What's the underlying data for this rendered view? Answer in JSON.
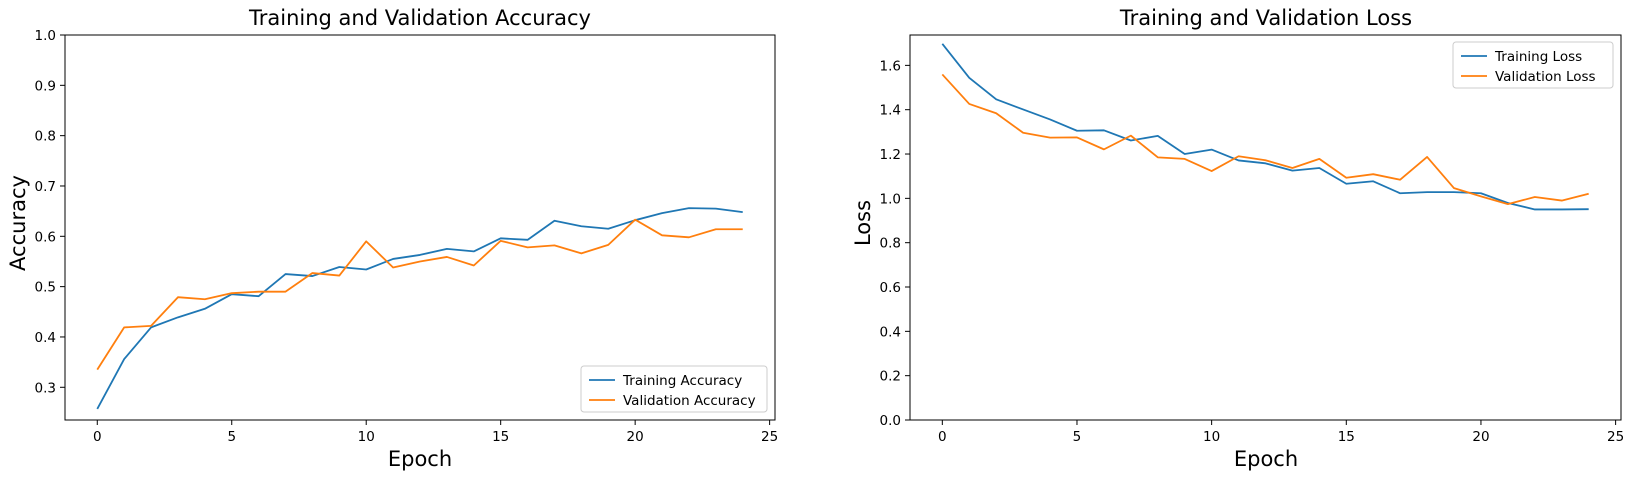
{
  "chart_data": [
    {
      "type": "line",
      "title": "Training and Validation Accuracy",
      "xlabel": "Epoch",
      "ylabel": "Accuracy",
      "xlim": [
        -1.2,
        25.2
      ],
      "ylim": [
        0.235,
        1.0
      ],
      "xticks": [
        0,
        5,
        10,
        15,
        20,
        25
      ],
      "yticks": [
        0.3,
        0.4,
        0.5,
        0.6,
        0.7,
        0.8,
        0.9,
        1.0
      ],
      "xtick_labels": [
        "0",
        "5",
        "10",
        "15",
        "20",
        "25"
      ],
      "ytick_labels": [
        "0.3",
        "0.4",
        "0.5",
        "0.6",
        "0.7",
        "0.8",
        "0.9",
        "1.0"
      ],
      "legend_position": "lower right",
      "grid": false,
      "x": [
        0,
        1,
        2,
        3,
        4,
        5,
        6,
        7,
        8,
        9,
        10,
        11,
        12,
        13,
        14,
        15,
        16,
        17,
        18,
        19,
        20,
        21,
        22,
        23,
        24
      ],
      "series": [
        {
          "name": "Training Accuracy",
          "color": "#1f77b4",
          "values": [
            0.257,
            0.356,
            0.419,
            0.439,
            0.456,
            0.485,
            0.481,
            0.525,
            0.521,
            0.539,
            0.534,
            0.555,
            0.563,
            0.575,
            0.57,
            0.596,
            0.593,
            0.631,
            0.62,
            0.615,
            0.632,
            0.646,
            0.656,
            0.655,
            0.648
          ]
        },
        {
          "name": "Validation Accuracy",
          "color": "#ff7f0e",
          "values": [
            0.335,
            0.419,
            0.422,
            0.479,
            0.475,
            0.487,
            0.49,
            0.49,
            0.527,
            0.522,
            0.59,
            0.538,
            0.55,
            0.559,
            0.542,
            0.591,
            0.578,
            0.582,
            0.566,
            0.583,
            0.633,
            0.602,
            0.598,
            0.614,
            0.614
          ]
        }
      ]
    },
    {
      "type": "line",
      "title": "Training and Validation Loss",
      "xlabel": "Epoch",
      "ylabel": "Loss",
      "xlim": [
        -1.2,
        25.2
      ],
      "ylim": [
        0.0,
        1.737
      ],
      "xticks": [
        0,
        5,
        10,
        15,
        20,
        25
      ],
      "yticks": [
        0.0,
        0.2,
        0.4,
        0.6,
        0.8,
        1.0,
        1.2,
        1.4,
        1.6
      ],
      "xtick_labels": [
        "0",
        "5",
        "10",
        "15",
        "20",
        "25"
      ],
      "ytick_labels": [
        "0.0",
        "0.2",
        "0.4",
        "0.6",
        "0.8",
        "1.0",
        "1.2",
        "1.4",
        "1.6"
      ],
      "legend_position": "upper right",
      "grid": false,
      "x": [
        0,
        1,
        2,
        3,
        4,
        5,
        6,
        7,
        8,
        9,
        10,
        11,
        12,
        13,
        14,
        15,
        16,
        17,
        18,
        19,
        20,
        21,
        22,
        23,
        24
      ],
      "series": [
        {
          "name": "Training Loss",
          "color": "#1f77b4",
          "values": [
            1.697,
            1.544,
            1.447,
            1.401,
            1.356,
            1.305,
            1.307,
            1.261,
            1.282,
            1.2,
            1.22,
            1.171,
            1.158,
            1.125,
            1.137,
            1.066,
            1.077,
            1.023,
            1.028,
            1.028,
            1.023,
            0.979,
            0.95,
            0.95,
            0.951
          ]
        },
        {
          "name": "Validation Loss",
          "color": "#ff7f0e",
          "values": [
            1.559,
            1.426,
            1.384,
            1.296,
            1.274,
            1.275,
            1.221,
            1.283,
            1.185,
            1.178,
            1.123,
            1.19,
            1.172,
            1.137,
            1.178,
            1.093,
            1.109,
            1.084,
            1.187,
            1.046,
            1.009,
            0.974,
            1.006,
            0.99,
            1.021
          ]
        }
      ]
    }
  ]
}
